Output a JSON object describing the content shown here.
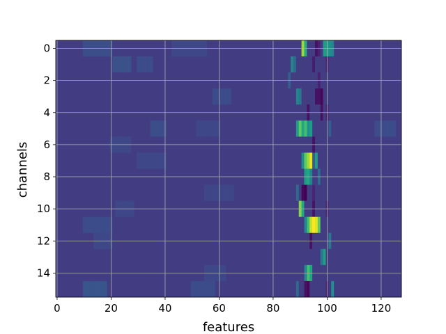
{
  "chart_data": {
    "type": "heatmap",
    "title": "",
    "xlabel": "features",
    "ylabel": "channels",
    "x_range": [
      -0.5,
      127.5
    ],
    "y_range": [
      -0.5,
      15.5
    ],
    "y_inverted": true,
    "grid": true,
    "colormap": "viridis",
    "x_ticks": [
      0,
      20,
      40,
      60,
      80,
      100,
      120
    ],
    "y_ticks": [
      0,
      2,
      4,
      6,
      8,
      10,
      12,
      14
    ],
    "n_rows": 16,
    "n_cols": 128,
    "background_value": 0.18,
    "background_noise": [
      {
        "row": 0,
        "col_start": 10,
        "col_end": 20,
        "value": 0.24
      },
      {
        "row": 0,
        "col_start": 43,
        "col_end": 55,
        "value": 0.22
      },
      {
        "row": 1,
        "col_start": 21,
        "col_end": 27,
        "value": 0.25
      },
      {
        "row": 1,
        "col_start": 30,
        "col_end": 35,
        "value": 0.23
      },
      {
        "row": 3,
        "col_start": 58,
        "col_end": 64,
        "value": 0.23
      },
      {
        "row": 5,
        "col_start": 35,
        "col_end": 40,
        "value": 0.24
      },
      {
        "row": 5,
        "col_start": 52,
        "col_end": 60,
        "value": 0.22
      },
      {
        "row": 5,
        "col_start": 118,
        "col_end": 125,
        "value": 0.23
      },
      {
        "row": 6,
        "col_start": 20,
        "col_end": 27,
        "value": 0.22
      },
      {
        "row": 7,
        "col_start": 30,
        "col_end": 40,
        "value": 0.22
      },
      {
        "row": 9,
        "col_start": 55,
        "col_end": 65,
        "value": 0.21
      },
      {
        "row": 10,
        "col_start": 22,
        "col_end": 28,
        "value": 0.22
      },
      {
        "row": 11,
        "col_start": 10,
        "col_end": 20,
        "value": 0.23
      },
      {
        "row": 14,
        "col_start": 55,
        "col_end": 62,
        "value": 0.22
      },
      {
        "row": 15,
        "col_start": 10,
        "col_end": 18,
        "value": 0.26
      },
      {
        "row": 15,
        "col_start": 50,
        "col_end": 58,
        "value": 0.23
      },
      {
        "row": 12,
        "col_start": 14,
        "col_end": 20,
        "value": 0.22
      }
    ],
    "hot_cells": [
      {
        "row": 0,
        "col": 91,
        "value": 0.85
      },
      {
        "row": 0,
        "col": 92,
        "value": 0.62
      },
      {
        "row": 0,
        "col": 96,
        "value": 0.05
      },
      {
        "row": 0,
        "col": 97,
        "value": 0.1
      },
      {
        "row": 0,
        "col": 99,
        "value": 0.55
      },
      {
        "row": 0,
        "col": 100,
        "value": 0.55
      },
      {
        "row": 0,
        "col": 101,
        "value": 0.5
      },
      {
        "row": 0,
        "col": 102,
        "value": 0.45
      },
      {
        "row": 1,
        "col": 87,
        "value": 0.45
      },
      {
        "row": 1,
        "col": 88,
        "value": 0.35
      },
      {
        "row": 1,
        "col": 95,
        "value": 0.08
      },
      {
        "row": 1,
        "col": 100,
        "value": 0.1
      },
      {
        "row": 2,
        "col": 86,
        "value": 0.3
      },
      {
        "row": 2,
        "col": 97,
        "value": 0.1
      },
      {
        "row": 3,
        "col": 89,
        "value": 0.45
      },
      {
        "row": 3,
        "col": 90,
        "value": 0.4
      },
      {
        "row": 3,
        "col": 96,
        "value": 0.05
      },
      {
        "row": 3,
        "col": 97,
        "value": 0.05
      },
      {
        "row": 3,
        "col": 98,
        "value": 0.02
      },
      {
        "row": 4,
        "col": 93,
        "value": 0.05
      },
      {
        "row": 4,
        "col": 98,
        "value": 0.05
      },
      {
        "row": 4,
        "col": 100,
        "value": 0.1
      },
      {
        "row": 5,
        "col": 89,
        "value": 0.55
      },
      {
        "row": 5,
        "col": 90,
        "value": 0.75
      },
      {
        "row": 5,
        "col": 91,
        "value": 0.6
      },
      {
        "row": 5,
        "col": 92,
        "value": 0.7
      },
      {
        "row": 5,
        "col": 93,
        "value": 0.5
      },
      {
        "row": 5,
        "col": 94,
        "value": 0.55
      },
      {
        "row": 5,
        "col": 101,
        "value": 0.3
      },
      {
        "row": 6,
        "col": 95,
        "value": 0.05
      },
      {
        "row": 7,
        "col": 91,
        "value": 0.5
      },
      {
        "row": 7,
        "col": 92,
        "value": 0.75
      },
      {
        "row": 7,
        "col": 93,
        "value": 0.85
      },
      {
        "row": 7,
        "col": 94,
        "value": 0.97
      },
      {
        "row": 7,
        "col": 95,
        "value": 0.3
      },
      {
        "row": 7,
        "col": 96,
        "value": 0.55
      },
      {
        "row": 8,
        "col": 92,
        "value": 0.55
      },
      {
        "row": 8,
        "col": 93,
        "value": 0.6
      },
      {
        "row": 8,
        "col": 94,
        "value": 0.45
      },
      {
        "row": 8,
        "col": 97,
        "value": 0.35
      },
      {
        "row": 9,
        "col": 91,
        "value": 0.02
      },
      {
        "row": 9,
        "col": 92,
        "value": 0.0
      },
      {
        "row": 9,
        "col": 95,
        "value": 0.1
      },
      {
        "row": 9,
        "col": 89,
        "value": 0.35
      },
      {
        "row": 10,
        "col": 90,
        "value": 0.82
      },
      {
        "row": 10,
        "col": 91,
        "value": 0.6
      },
      {
        "row": 10,
        "col": 95,
        "value": 0.05
      },
      {
        "row": 10,
        "col": 100,
        "value": 0.1
      },
      {
        "row": 11,
        "col": 93,
        "value": 0.7
      },
      {
        "row": 11,
        "col": 94,
        "value": 0.92
      },
      {
        "row": 11,
        "col": 95,
        "value": 1.0
      },
      {
        "row": 11,
        "col": 96,
        "value": 0.95
      },
      {
        "row": 11,
        "col": 97,
        "value": 0.75
      },
      {
        "row": 11,
        "col": 92,
        "value": 0.45
      },
      {
        "row": 12,
        "col": 94,
        "value": 0.05
      },
      {
        "row": 12,
        "col": 101,
        "value": 0.4
      },
      {
        "row": 13,
        "col": 99,
        "value": 0.55
      },
      {
        "row": 13,
        "col": 98,
        "value": 0.4
      },
      {
        "row": 14,
        "col": 93,
        "value": 0.7
      },
      {
        "row": 14,
        "col": 94,
        "value": 0.6
      },
      {
        "row": 14,
        "col": 92,
        "value": 0.45
      },
      {
        "row": 15,
        "col": 89,
        "value": 0.35
      },
      {
        "row": 15,
        "col": 92,
        "value": 0.05
      },
      {
        "row": 15,
        "col": 93,
        "value": 0.02
      },
      {
        "row": 15,
        "col": 100,
        "value": 0.1
      },
      {
        "row": 15,
        "col": 102,
        "value": 0.5
      }
    ]
  }
}
